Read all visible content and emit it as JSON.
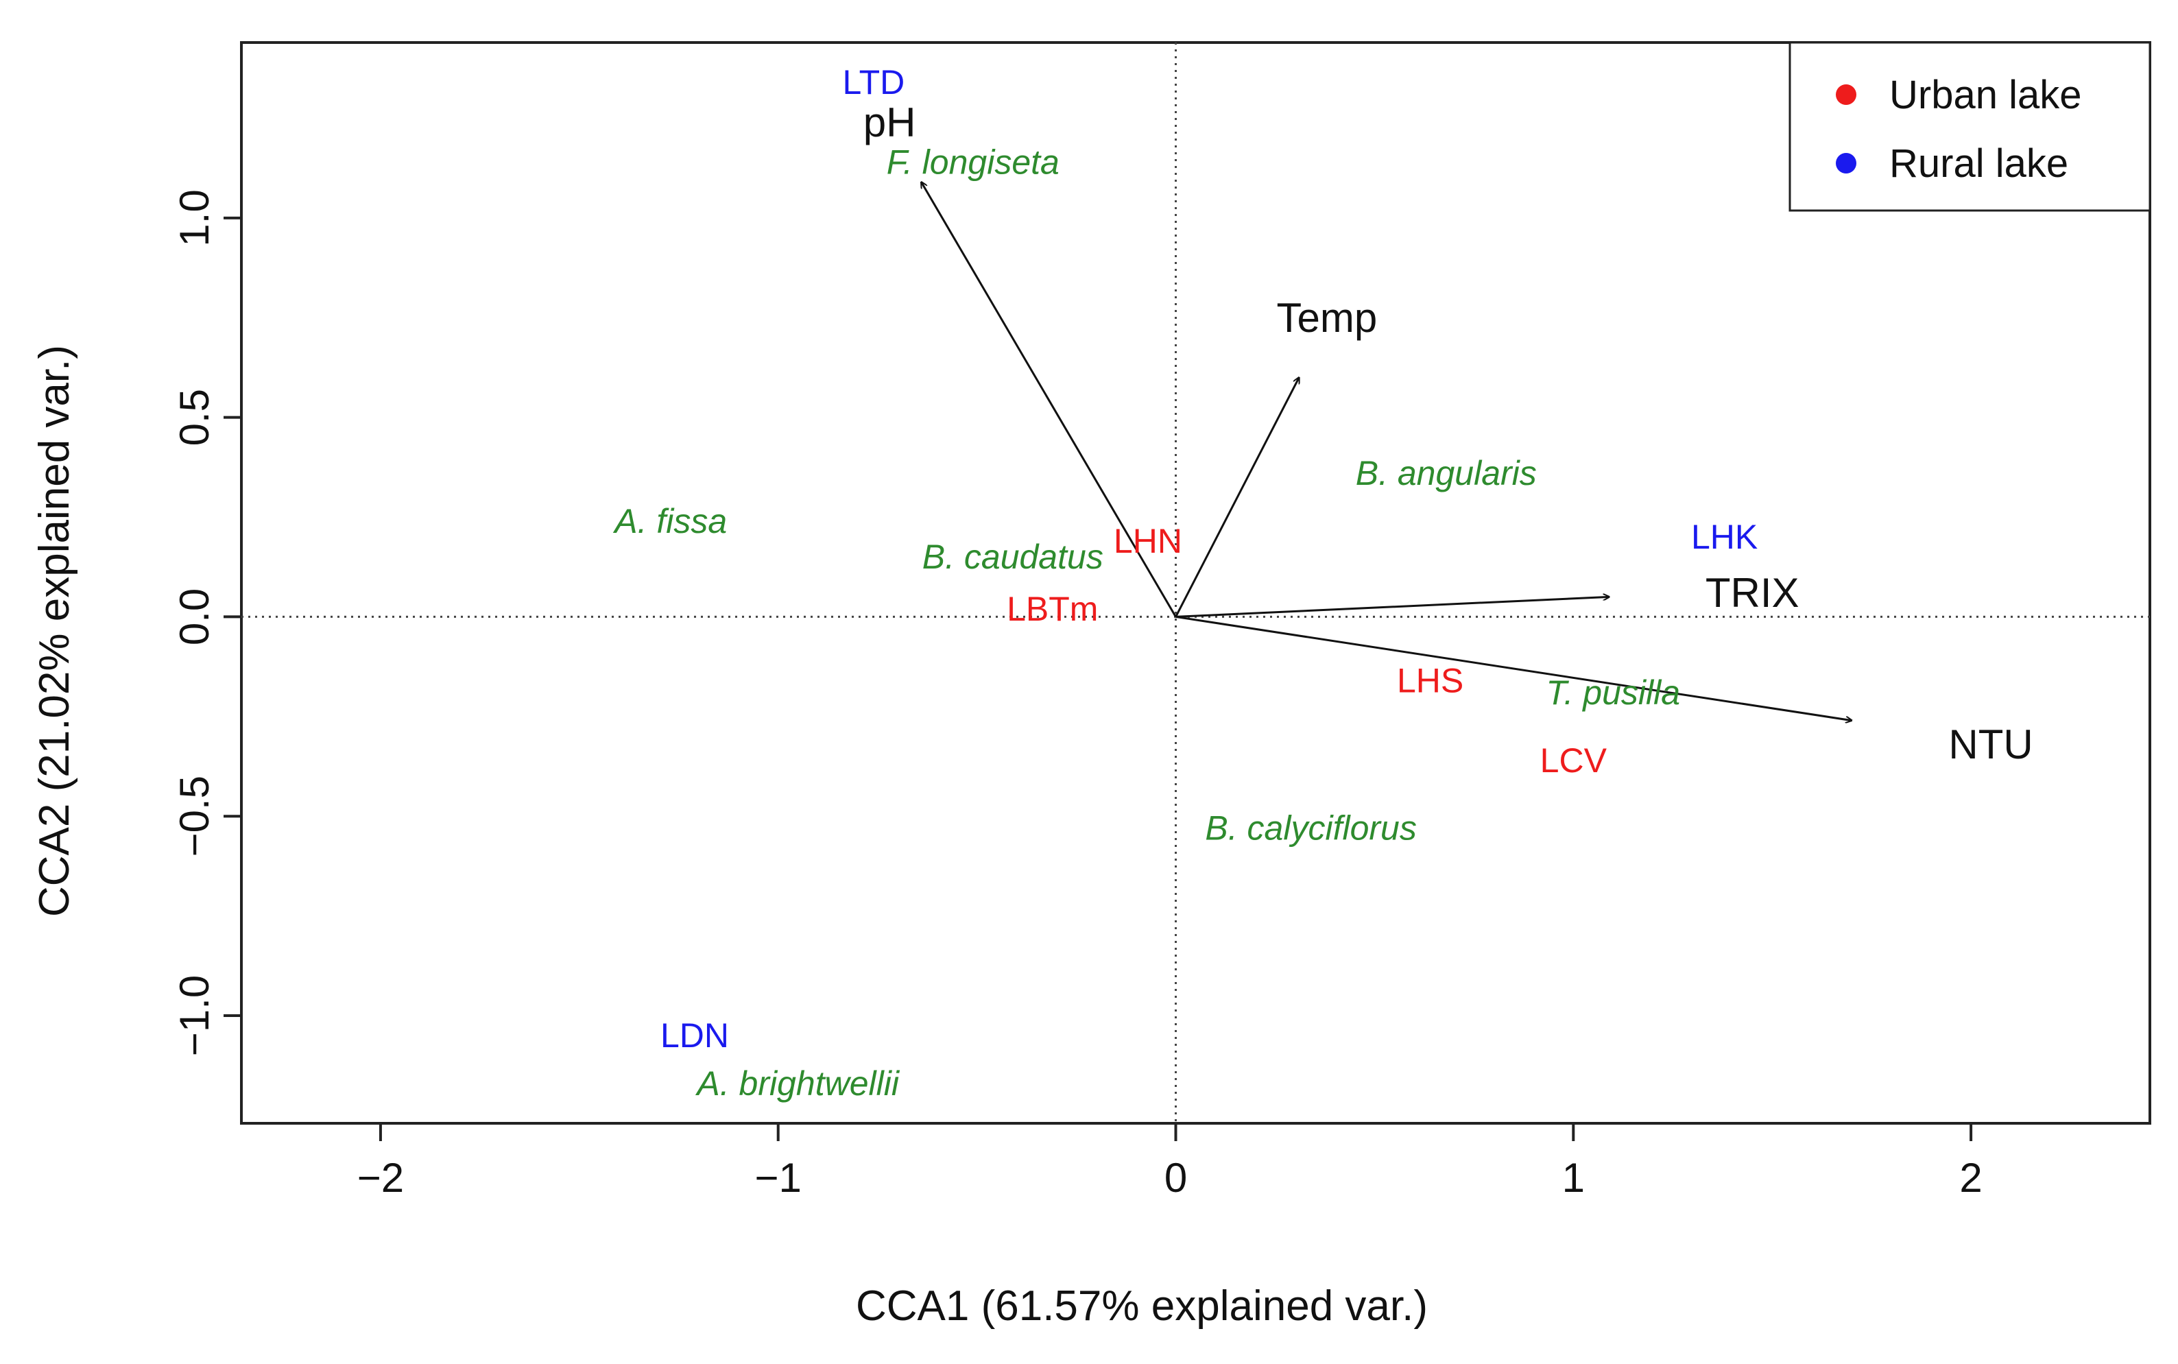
{
  "chart_data": {
    "type": "biplot",
    "xlabel": "CCA1 (61.57% explained var.)",
    "ylabel": "CCA2 (21.02% explained var.)",
    "xlim": [
      -2.35,
      2.45
    ],
    "ylim": [
      -1.27,
      1.44
    ],
    "xticks": [
      {
        "v": -2,
        "label": "−2"
      },
      {
        "v": -1,
        "label": "−1"
      },
      {
        "v": 0,
        "label": "0"
      },
      {
        "v": 1,
        "label": "1"
      },
      {
        "v": 2,
        "label": "2"
      }
    ],
    "yticks": [
      {
        "v": -1.0,
        "label": "−1.0"
      },
      {
        "v": -0.5,
        "label": "−0.5"
      },
      {
        "v": 0.0,
        "label": "0.0"
      },
      {
        "v": 0.5,
        "label": "0.5"
      },
      {
        "v": 1.0,
        "label": "1.0"
      }
    ],
    "reference_lines": {
      "x": 0,
      "y": 0,
      "style": "dotted"
    },
    "vectors": [
      {
        "label": "pH",
        "x": -0.64,
        "y": 1.09,
        "label_x": -0.72,
        "label_y": 1.24
      },
      {
        "label": "Temp",
        "x": 0.31,
        "y": 0.6,
        "label_x": 0.38,
        "label_y": 0.75
      },
      {
        "label": "TRIX",
        "x": 1.09,
        "y": 0.05,
        "label_x": 1.45,
        "label_y": 0.06
      },
      {
        "label": "NTU",
        "x": 1.7,
        "y": -0.26,
        "label_x": 2.05,
        "label_y": -0.32
      }
    ],
    "sites": [
      {
        "label": "LTD",
        "group": "Rural lake",
        "x": -0.76,
        "y": 1.34
      },
      {
        "label": "LHN",
        "group": "Urban lake",
        "x": -0.07,
        "y": 0.19
      },
      {
        "label": "LBTm",
        "group": "Urban lake",
        "x": -0.31,
        "y": 0.02
      },
      {
        "label": "LHK",
        "group": "Rural lake",
        "x": 1.38,
        "y": 0.2
      },
      {
        "label": "LHS",
        "group": "Urban lake",
        "x": 0.64,
        "y": -0.16
      },
      {
        "label": "LCV",
        "group": "Urban lake",
        "x": 1.0,
        "y": -0.36
      },
      {
        "label": "LDN",
        "group": "Rural lake",
        "x": -1.21,
        "y": -1.05
      }
    ],
    "species": [
      {
        "label": "F. longiseta",
        "x": -0.51,
        "y": 1.14
      },
      {
        "label": "B. angularis",
        "x": 0.68,
        "y": 0.36
      },
      {
        "label": "A. fissa",
        "x": -1.27,
        "y": 0.24
      },
      {
        "label": "B. caudatus",
        "x": -0.41,
        "y": 0.15
      },
      {
        "label": "T. pusilla",
        "x": 1.1,
        "y": -0.19
      },
      {
        "label": "B. calyciflorus",
        "x": 0.34,
        "y": -0.53
      },
      {
        "label": "A. brightwellii",
        "x": -0.95,
        "y": -1.17
      }
    ],
    "legend": {
      "position": "top-right",
      "entries": [
        {
          "label": "Urban lake",
          "color": "#ee1c1c"
        },
        {
          "label": "Rural lake",
          "color": "#1a1aee"
        }
      ]
    },
    "colors": {
      "urban": "#ee1c1c",
      "rural": "#1a1aee",
      "species": "#2e8b2e",
      "vector": "#111111"
    }
  }
}
